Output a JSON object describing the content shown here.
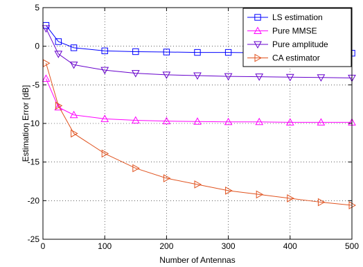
{
  "chart_data": {
    "type": "line",
    "title": "",
    "xlabel": "Number of Antennas",
    "ylabel": "Estimation Error [dB]",
    "xlim": [
      0,
      500
    ],
    "ylim": [
      -25,
      5
    ],
    "x_ticks": [
      0,
      100,
      200,
      300,
      400,
      500
    ],
    "y_ticks": [
      5,
      0,
      -5,
      -10,
      -15,
      -20,
      -25
    ],
    "grid": true,
    "legend_position": "top-right",
    "x": [
      5,
      25,
      50,
      100,
      150,
      200,
      250,
      300,
      350,
      400,
      450,
      500
    ],
    "series": [
      {
        "name": "LS estimation",
        "color": "#0000ff",
        "marker": "square",
        "values": [
          2.7,
          0.6,
          -0.2,
          -0.6,
          -0.7,
          -0.75,
          -0.8,
          -0.8,
          -0.85,
          -0.85,
          -0.85,
          -0.9
        ]
      },
      {
        "name": "Pure MMSE",
        "color": "#ff00ff",
        "marker": "triangle-up",
        "values": [
          -4.2,
          -7.9,
          -8.9,
          -9.4,
          -9.6,
          -9.7,
          -9.75,
          -9.8,
          -9.8,
          -9.85,
          -9.85,
          -9.85
        ]
      },
      {
        "name": "Pure amplitude",
        "color": "#6600cc",
        "marker": "triangle-down",
        "values": [
          2.3,
          -1.0,
          -2.4,
          -3.1,
          -3.5,
          -3.7,
          -3.8,
          -3.9,
          -3.95,
          -4.0,
          -4.05,
          -4.1
        ]
      },
      {
        "name": "CA estimator",
        "color": "#e0521e",
        "marker": "triangle-right",
        "values": [
          -2.2,
          -7.7,
          -11.3,
          -13.9,
          -15.8,
          -17.1,
          -17.9,
          -18.7,
          -19.2,
          -19.7,
          -20.2,
          -20.6
        ]
      }
    ]
  }
}
